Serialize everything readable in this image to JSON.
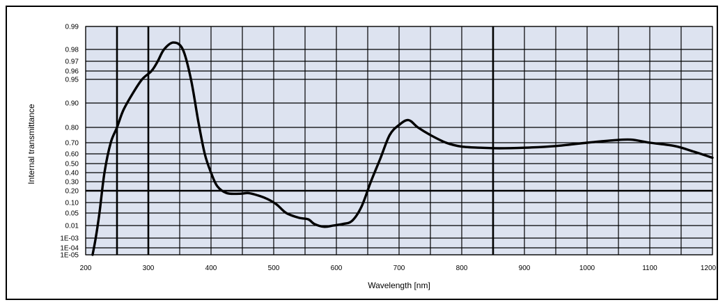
{
  "chart_data": {
    "type": "line",
    "title": "",
    "xlabel": "Wavelength [nm]",
    "ylabel": "Internal transmittance",
    "xlim": [
      200,
      1200
    ],
    "x_ticks": [
      200,
      300,
      400,
      500,
      600,
      700,
      800,
      900,
      1000,
      1100,
      1200
    ],
    "x_major_lines": [
      250,
      300,
      850
    ],
    "y_ticks": [
      "0.99",
      "0.98",
      "0.97",
      "0.96",
      "0.95",
      "0.90",
      "0.80",
      "0.70",
      "0.60",
      "0.50",
      "0.40",
      "0.30",
      "0.20",
      "0.10",
      "0.05",
      "0.01",
      "1E-03",
      "1E-04",
      "1E-05"
    ],
    "y_major_line": "0.20",
    "grid": true,
    "plot_background": "#dde3f0",
    "line_color": "#000000",
    "series": [
      {
        "name": "",
        "points": [
          [
            211,
            "1E-05"
          ],
          [
            216,
            "1E-03"
          ],
          [
            222,
            "0.05"
          ],
          [
            230,
            "0.40"
          ],
          [
            240,
            "0.70"
          ],
          [
            250,
            "0.80"
          ],
          [
            260,
            "0.87"
          ],
          [
            275,
            "0.92"
          ],
          [
            290,
            "0.95"
          ],
          [
            305,
            "0.96"
          ],
          [
            315,
            "0.97"
          ],
          [
            325,
            "0.98"
          ],
          [
            340,
            "0.983"
          ],
          [
            355,
            "0.98"
          ],
          [
            368,
            "0.95"
          ],
          [
            380,
            "0.82"
          ],
          [
            390,
            "0.60"
          ],
          [
            400,
            "0.40"
          ],
          [
            410,
            "0.25"
          ],
          [
            425,
            "0.18"
          ],
          [
            445,
            "0.175"
          ],
          [
            460,
            "0.18"
          ],
          [
            475,
            "0.16"
          ],
          [
            490,
            "0.13"
          ],
          [
            505,
            "0.09"
          ],
          [
            520,
            "0.05"
          ],
          [
            540,
            "0.035"
          ],
          [
            555,
            "0.03"
          ],
          [
            565,
            "0.015"
          ],
          [
            580,
            "0.008"
          ],
          [
            595,
            "0.01"
          ],
          [
            610,
            "0.015"
          ],
          [
            625,
            "0.025"
          ],
          [
            640,
            "0.08"
          ],
          [
            655,
            "0.30"
          ],
          [
            670,
            "0.55"
          ],
          [
            685,
            "0.75"
          ],
          [
            700,
            "0.81"
          ],
          [
            715,
            "0.83"
          ],
          [
            730,
            "0.80"
          ],
          [
            750,
            "0.75"
          ],
          [
            775,
            "0.70"
          ],
          [
            800,
            "0.665"
          ],
          [
            830,
            "0.655"
          ],
          [
            860,
            "0.65"
          ],
          [
            900,
            "0.655"
          ],
          [
            950,
            "0.67"
          ],
          [
            1000,
            "0.70"
          ],
          [
            1040,
            "0.715"
          ],
          [
            1070,
            "0.72"
          ],
          [
            1100,
            "0.70"
          ],
          [
            1140,
            "0.67"
          ],
          [
            1170,
            "0.62"
          ],
          [
            1200,
            "0.56"
          ]
        ]
      }
    ]
  }
}
